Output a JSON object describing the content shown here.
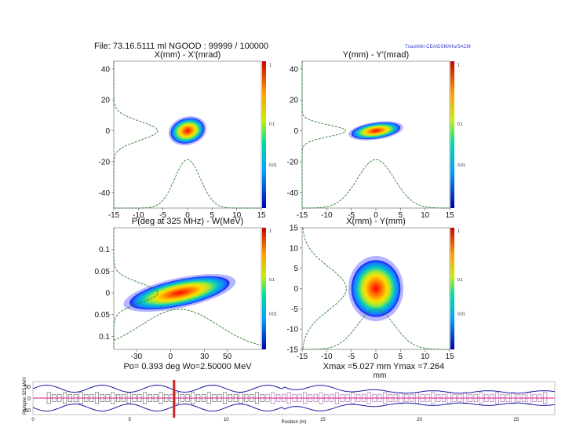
{
  "header": {
    "file_line": "File: 73.16.5111 ml    NGOOD : 99999 / 100000",
    "tracewin": "TraceWin    CEA/DSM/Irfu/SACM"
  },
  "colorbar": {
    "ticks": [
      "1",
      "0.1",
      "0.01"
    ]
  },
  "colors": {
    "halo": "#0000cc",
    "core": "#ff0000",
    "profile": "#2e7d32",
    "envelope": "#1a1aa6",
    "beam_line": "#e040a0",
    "marker": "#c62828"
  },
  "chart_data": [
    {
      "type": "scatter",
      "title": "X(mm) - X'(mrad)",
      "xlim": [
        -15,
        15
      ],
      "ylim": [
        -50,
        45
      ],
      "xticks": [
        "-15",
        "-10",
        "-5",
        "0",
        "5",
        "10",
        "15"
      ],
      "yticks": [
        {
          "v": 40,
          "l": "40"
        },
        {
          "v": 20,
          "l": "20"
        },
        {
          "v": 0,
          "l": "0"
        },
        {
          "v": -20,
          "l": "-20"
        },
        {
          "v": -40,
          "l": "-40"
        }
      ],
      "beam": {
        "cx": 0,
        "cy": 0,
        "rx": 3.5,
        "ry": 8,
        "rot": -15
      }
    },
    {
      "type": "scatter",
      "title": "Y(mm) - Y'(mrad)",
      "xlim": [
        -15,
        15
      ],
      "ylim": [
        -50,
        45
      ],
      "xticks": [
        "-15",
        "-10",
        "-5",
        "0",
        "5",
        "10",
        "15"
      ],
      "yticks": [
        {
          "v": 40,
          "l": "40"
        },
        {
          "v": 20,
          "l": "20"
        },
        {
          "v": 0,
          "l": "0"
        },
        {
          "v": -20,
          "l": "-20"
        },
        {
          "v": -40,
          "l": "-40"
        }
      ],
      "beam": {
        "cx": 0,
        "cy": 0,
        "rx": 5,
        "ry": 5,
        "rot": -8
      }
    },
    {
      "type": "scatter",
      "title": "P(deg at 325 MHz) - W(MeV)",
      "xlim": [
        -50,
        80
      ],
      "ylim": [
        -0.13,
        0.15
      ],
      "xticks": [
        "-30",
        "0",
        "30",
        "50"
      ],
      "yticks": [
        {
          "v": 0.1,
          "l": "0.1"
        },
        {
          "v": 0.05,
          "l": "0.05"
        },
        {
          "v": 0,
          "l": "0"
        },
        {
          "v": -0.05,
          "l": "0.05"
        },
        {
          "v": -0.1,
          "l": "0.1"
        }
      ],
      "beam": {
        "cx": 8,
        "cy": 0,
        "rx": 45,
        "ry": 0.03,
        "rot": -12
      },
      "footer": "Po= 0.393 deg  Wo=2.50000 MeV"
    },
    {
      "type": "scatter",
      "title": "X(mm) - Y(mm)",
      "xlim": [
        -15,
        15
      ],
      "ylim": [
        -15,
        15
      ],
      "xticks": [
        "-15",
        "-10",
        "-5",
        "0",
        "5",
        "10",
        "15"
      ],
      "yticks": [
        {
          "v": 15,
          "l": "15"
        },
        {
          "v": 10,
          "l": "10"
        },
        {
          "v": 5,
          "l": "5"
        },
        {
          "v": 0,
          "l": "0"
        },
        {
          "v": -5,
          "l": "-5"
        },
        {
          "v": -10,
          "l": "-10"
        },
        {
          "v": -15,
          "l": "-15"
        }
      ],
      "beam": {
        "cx": 0,
        "cy": 0,
        "rx": 5,
        "ry": 7,
        "rot": 0
      },
      "footer": "Xmax =5.027 mm  Ymax =7.264",
      "footer2": "mm"
    },
    {
      "type": "line",
      "title": "",
      "ylabel": "Ph/ngne 325 MeV",
      "xlabel": "Position (m)",
      "xlim": [
        0,
        27
      ],
      "ylim": [
        -70,
        70
      ],
      "yticks": [
        {
          "v": 50,
          "l": "50"
        },
        {
          "v": 0,
          "l": "0"
        },
        {
          "v": -50,
          "l": "-50"
        }
      ],
      "xticks": [
        {
          "v": 0,
          "l": "0"
        },
        {
          "v": 5,
          "l": "5"
        },
        {
          "v": 10,
          "l": "10"
        },
        {
          "v": 15,
          "l": "15"
        },
        {
          "v": 20,
          "l": "20"
        },
        {
          "v": 25,
          "l": "25"
        }
      ],
      "marker_position": 7.3
    }
  ]
}
